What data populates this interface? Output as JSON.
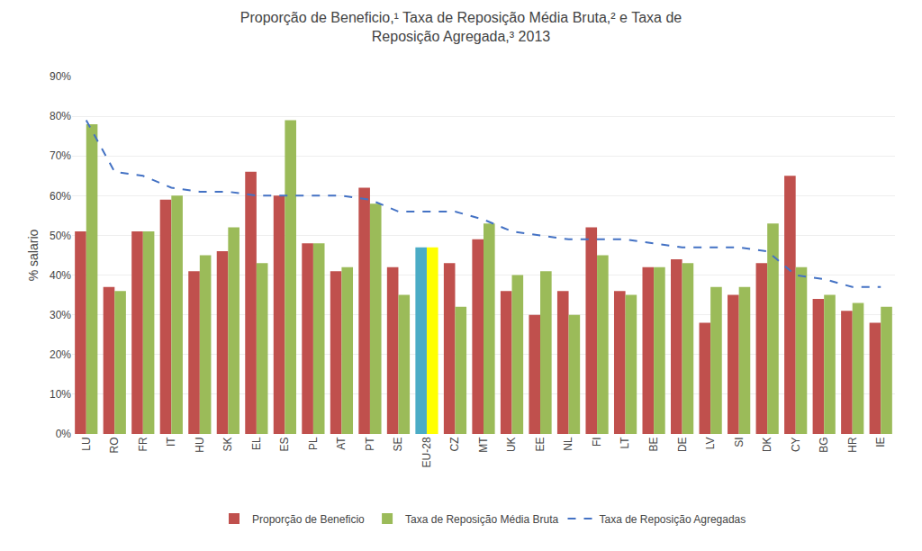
{
  "chart_data": {
    "type": "bar",
    "title": "Proporção de Beneficio,¹ Taxa de Reposição Média Bruta,² e Taxa de\nReposição Agregada,³ 2013",
    "ylabel": "% salario",
    "categories": [
      "LU",
      "RO",
      "FR",
      "IT",
      "HU",
      "SK",
      "EL",
      "ES",
      "PL",
      "AT",
      "PT",
      "SE",
      "EU-28",
      "CZ",
      "MT",
      "UK",
      "EE",
      "NL",
      "FI",
      "LT",
      "BE",
      "DE",
      "LV",
      "SI",
      "DK",
      "CY",
      "BG",
      "HR",
      "IE"
    ],
    "series": [
      {
        "name": "Proporção de Beneficio",
        "type": "bar",
        "colors": [
          "#C0504D",
          "#C0504D",
          "#C0504D",
          "#C0504D",
          "#C0504D",
          "#C0504D",
          "#C0504D",
          "#C0504D",
          "#C0504D",
          "#C0504D",
          "#C0504D",
          "#C0504D",
          "#4BACC6",
          "#C0504D",
          "#C0504D",
          "#C0504D",
          "#C0504D",
          "#C0504D",
          "#C0504D",
          "#C0504D",
          "#C0504D",
          "#C0504D",
          "#C0504D",
          "#C0504D",
          "#C0504D",
          "#C0504D",
          "#C0504D",
          "#C0504D",
          "#C0504D"
        ],
        "values": [
          51,
          37,
          51,
          59,
          41,
          46,
          66,
          60,
          48,
          41,
          62,
          42,
          47,
          43,
          49,
          36,
          30,
          36,
          52,
          36,
          42,
          44,
          28,
          35,
          43,
          65,
          34,
          31,
          28
        ]
      },
      {
        "name": "Taxa de Reposição Média Bruta",
        "type": "bar",
        "colors": [
          "#9BBB59",
          "#9BBB59",
          "#9BBB59",
          "#9BBB59",
          "#9BBB59",
          "#9BBB59",
          "#9BBB59",
          "#9BBB59",
          "#9BBB59",
          "#9BBB59",
          "#9BBB59",
          "#9BBB59",
          "#FFFF00",
          "#9BBB59",
          "#9BBB59",
          "#9BBB59",
          "#9BBB59",
          "#9BBB59",
          "#9BBB59",
          "#9BBB59",
          "#9BBB59",
          "#9BBB59",
          "#9BBB59",
          "#9BBB59",
          "#9BBB59",
          "#9BBB59",
          "#9BBB59",
          "#9BBB59",
          "#9BBB59"
        ],
        "values": [
          78,
          36,
          51,
          60,
          45,
          52,
          43,
          79,
          48,
          42,
          58,
          35,
          47,
          32,
          53,
          40,
          41,
          30,
          45,
          35,
          42,
          43,
          37,
          37,
          53,
          42,
          35,
          33,
          32
        ]
      },
      {
        "name": "Taxa de Reposição Agregadas",
        "type": "line",
        "color": "#4472C4",
        "line_style": "dashed",
        "values": [
          79,
          66,
          65,
          62,
          61,
          61,
          60,
          60,
          60,
          60,
          59,
          56,
          56,
          56,
          54,
          51,
          50,
          49,
          49,
          49,
          48,
          47,
          47,
          47,
          46,
          40,
          39,
          37,
          37
        ]
      }
    ],
    "ylim": [
      0,
      90
    ],
    "yticks": [
      {
        "value": 0,
        "label": "0%"
      },
      {
        "value": 10,
        "label": "10%"
      },
      {
        "value": 20,
        "label": "20%"
      },
      {
        "value": 30,
        "label": "30%"
      },
      {
        "value": 40,
        "label": "40%"
      },
      {
        "value": 50,
        "label": "50%"
      },
      {
        "value": 60,
        "label": "60%"
      },
      {
        "value": 70,
        "label": "70%"
      },
      {
        "value": 80,
        "label": "80%"
      },
      {
        "value": 90,
        "label": "90%"
      }
    ],
    "grid": true,
    "legend": "bottom"
  }
}
